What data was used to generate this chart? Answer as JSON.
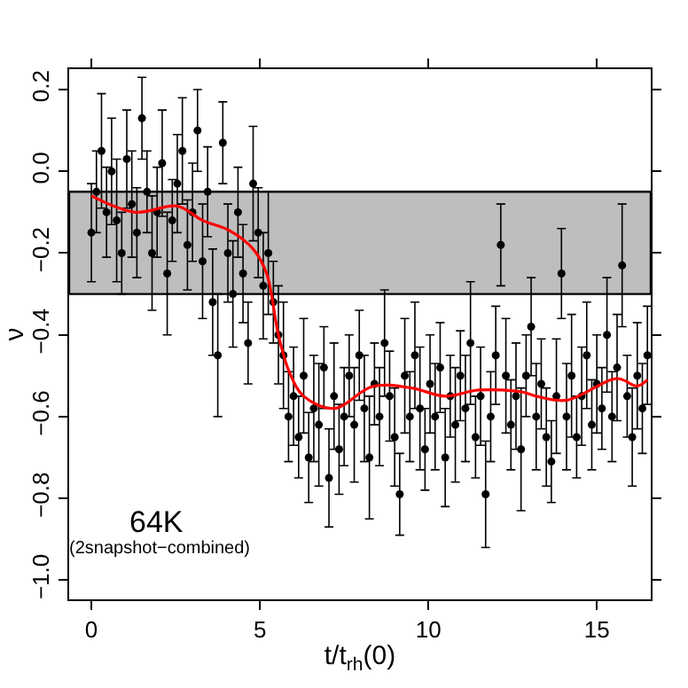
{
  "chart_data": {
    "type": "scatter",
    "xlabel": "t/t$_{rh}$(0)",
    "ylabel": "ν",
    "xlim": [
      -0.66,
      16.6
    ],
    "ylim": [
      -1.047,
      0.25
    ],
    "xticks": [
      0,
      5,
      10,
      15
    ],
    "yticks": [
      0.2,
      {
        "value": 0,
        "label": "0.0"
      },
      {
        "value": -0.2,
        "label": "−0.2"
      },
      {
        "value": -0.4,
        "label": "−0.4"
      },
      {
        "value": -0.6,
        "label": "−0.6"
      },
      {
        "value": -0.8,
        "label": "−0.8"
      },
      {
        "value": -1.0,
        "label": "−1.0"
      }
    ],
    "grid": false,
    "bands": [
      {
        "axis": "y",
        "from": -0.3,
        "to": -0.05,
        "color": "#bebebe"
      }
    ],
    "annotations": [
      "64K",
      "(2snapshot−combined)"
    ],
    "series": [
      {
        "color": "#000000",
        "marker": "circle",
        "x": [
          0,
          0.15,
          0.3,
          0.45,
          0.6,
          0.75,
          0.9,
          1.05,
          1.2,
          1.35,
          1.5,
          1.65,
          1.8,
          1.95,
          2.1,
          2.25,
          2.4,
          2.55,
          2.7,
          2.85,
          3.0,
          3.15,
          3.3,
          3.45,
          3.6,
          3.75,
          3.9,
          4.05,
          4.2,
          4.35,
          4.5,
          4.65,
          4.8,
          4.95,
          5.1,
          5.25,
          5.4,
          5.55,
          5.7,
          5.85,
          6.0,
          6.15,
          6.3,
          6.45,
          6.6,
          6.75,
          6.9,
          7.05,
          7.2,
          7.35,
          7.5,
          7.65,
          7.8,
          7.95,
          8.1,
          8.25,
          8.4,
          8.55,
          8.7,
          8.85,
          9.0,
          9.15,
          9.3,
          9.45,
          9.6,
          9.75,
          9.9,
          10.05,
          10.2,
          10.35,
          10.5,
          10.65,
          10.8,
          10.95,
          11.1,
          11.25,
          11.4,
          11.55,
          11.7,
          11.85,
          12.0,
          12.15,
          12.3,
          12.45,
          12.6,
          12.75,
          12.9,
          13.05,
          13.2,
          13.35,
          13.5,
          13.65,
          13.8,
          13.95,
          14.1,
          14.25,
          14.4,
          14.55,
          14.7,
          14.85,
          15.0,
          15.15,
          15.3,
          15.45,
          15.6,
          15.75,
          15.9,
          16.05,
          16.2,
          16.35,
          16.5
        ],
        "values": [
          -0.15,
          -0.05,
          0.05,
          -0.1,
          0.0,
          -0.12,
          -0.2,
          0.03,
          -0.08,
          -0.15,
          0.13,
          -0.05,
          -0.2,
          -0.1,
          0.02,
          -0.25,
          -0.12,
          -0.03,
          0.05,
          -0.18,
          -0.1,
          0.1,
          -0.22,
          -0.05,
          -0.32,
          -0.45,
          0.07,
          -0.2,
          -0.3,
          -0.1,
          -0.25,
          -0.42,
          -0.03,
          -0.15,
          -0.28,
          -0.2,
          -0.32,
          -0.4,
          -0.45,
          -0.6,
          -0.55,
          -0.65,
          -0.5,
          -0.7,
          -0.58,
          -0.62,
          -0.48,
          -0.75,
          -0.55,
          -0.68,
          -0.6,
          -0.5,
          -0.62,
          -0.45,
          -0.58,
          -0.7,
          -0.52,
          -0.6,
          -0.42,
          -0.55,
          -0.65,
          -0.79,
          -0.5,
          -0.6,
          -0.45,
          -0.58,
          -0.68,
          -0.52,
          -0.6,
          -0.48,
          -0.7,
          -0.55,
          -0.62,
          -0.5,
          -0.58,
          -0.42,
          -0.65,
          -0.55,
          -0.79,
          -0.6,
          -0.45,
          -0.18,
          -0.5,
          -0.62,
          -0.55,
          -0.68,
          -0.5,
          -0.38,
          -0.6,
          -0.52,
          -0.65,
          -0.71,
          -0.55,
          -0.25,
          -0.6,
          -0.5,
          -0.65,
          -0.55,
          -0.45,
          -0.62,
          -0.52,
          -0.58,
          -0.4,
          -0.6,
          -0.48,
          -0.23,
          -0.55,
          -0.65,
          -0.5,
          -0.58,
          -0.45
        ],
        "errors": [
          0.12,
          0.1,
          0.14,
          0.11,
          0.13,
          0.15,
          0.1,
          0.12,
          0.13,
          0.11,
          0.1,
          0.1,
          0.14,
          0.11,
          0.13,
          0.15,
          0.1,
          0.12,
          0.13,
          0.11,
          0.12,
          0.1,
          0.14,
          0.11,
          0.13,
          0.15,
          0.1,
          0.12,
          0.13,
          0.11,
          0.12,
          0.1,
          0.14,
          0.11,
          0.13,
          0.15,
          0.1,
          0.12,
          0.13,
          0.11,
          0.12,
          0.1,
          0.14,
          0.11,
          0.13,
          0.15,
          0.1,
          0.12,
          0.13,
          0.11,
          0.12,
          0.1,
          0.14,
          0.11,
          0.13,
          0.15,
          0.1,
          0.12,
          0.13,
          0.11,
          0.12,
          0.1,
          0.14,
          0.11,
          0.13,
          0.15,
          0.1,
          0.12,
          0.13,
          0.11,
          0.12,
          0.1,
          0.14,
          0.11,
          0.13,
          0.15,
          0.1,
          0.12,
          0.13,
          0.11,
          0.12,
          0.1,
          0.14,
          0.11,
          0.13,
          0.15,
          0.1,
          0.12,
          0.13,
          0.11,
          0.12,
          0.1,
          0.14,
          0.11,
          0.13,
          0.15,
          0.1,
          0.12,
          0.13,
          0.11,
          0.12,
          0.1,
          0.14,
          0.11,
          0.13,
          0.15,
          0.1,
          0.12,
          0.13,
          0.11,
          0.12
        ]
      },
      {
        "type": "line",
        "color": "#ff0000",
        "marker": "none",
        "line_style": "solid",
        "x": [
          0,
          1.3,
          2.55,
          3.3,
          4.1,
          4.8,
          5.2,
          5.55,
          5.87,
          6.3,
          7.2,
          8.35,
          9.5,
          10.5,
          11.5,
          12.8,
          13.2,
          14.1,
          15.6,
          16.2,
          16.5
        ],
        "values": [
          -0.06,
          -0.1,
          -0.085,
          -0.12,
          -0.145,
          -0.19,
          -0.25,
          -0.4,
          -0.49,
          -0.55,
          -0.58,
          -0.526,
          -0.53,
          -0.55,
          -0.535,
          -0.54,
          -0.55,
          -0.56,
          -0.507,
          -0.525,
          -0.51
        ]
      }
    ]
  }
}
